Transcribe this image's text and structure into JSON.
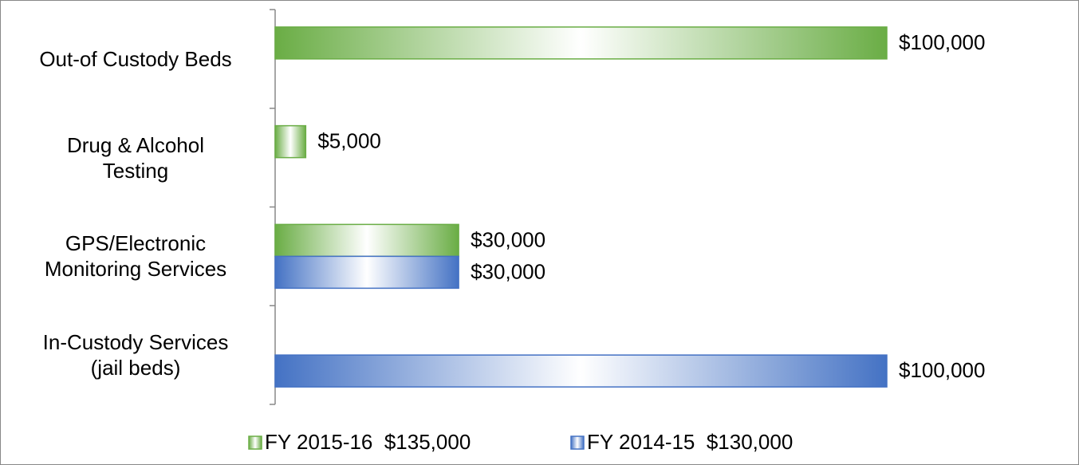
{
  "chart_data": {
    "type": "barh",
    "categories": [
      "In-Custody Services\n(jail beds)",
      "GPS/Electronic\nMonitoring Services",
      "Drug & Alcohol\nTesting",
      "Out-of Custody Beds"
    ],
    "series": [
      {
        "name": "FY 2015-16  $135,000",
        "color": "#6aad45",
        "values": [
          null,
          30000,
          5000,
          100000
        ],
        "value_labels": [
          null,
          "$30,000",
          "$5,000",
          "$100,000"
        ]
      },
      {
        "name": "FY 2014-15  $130,000",
        "color": "#4472c4",
        "values": [
          100000,
          30000,
          null,
          null
        ],
        "value_labels": [
          "$100,000",
          "$30,000",
          null,
          null
        ]
      }
    ]
  }
}
